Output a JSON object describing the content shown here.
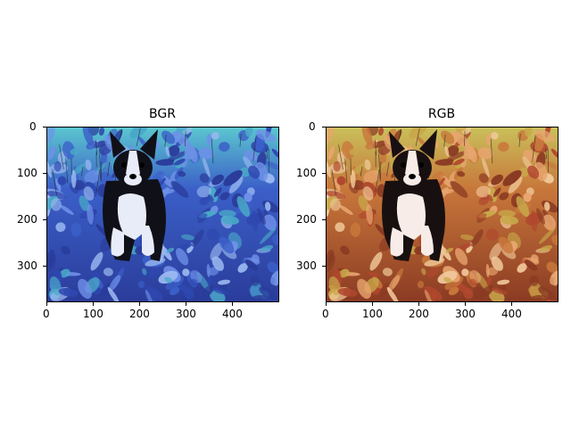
{
  "figure": {
    "panels": [
      {
        "title": "BGR",
        "xticks": [
          "0",
          "100",
          "200",
          "300",
          "400"
        ],
        "yticks": [
          "0",
          "100",
          "200",
          "300"
        ],
        "palette": {
          "bg_top": "#5bc6cf",
          "bg_mid": "#3b5fc8",
          "bg_bot": "#2a3c9a",
          "leaf_a": "#6f90e8",
          "leaf_b": "#2e48b0",
          "leaf_c": "#9ab8f0",
          "leaf_d": "#4aa8c8",
          "dog_dark": "#101018",
          "dog_light": "#e8ecf8"
        }
      },
      {
        "title": "RGB",
        "xticks": [
          "0",
          "100",
          "200",
          "300",
          "400"
        ],
        "yticks": [
          "0",
          "100",
          "200",
          "300"
        ],
        "palette": {
          "bg_top": "#c9c05a",
          "bg_mid": "#c8773b",
          "bg_bot": "#8a3a22",
          "leaf_a": "#e8a56f",
          "leaf_b": "#b0482e",
          "leaf_c": "#f0c89a",
          "leaf_d": "#c8a84a",
          "dog_dark": "#181010",
          "dog_light": "#f8ece8"
        }
      }
    ]
  }
}
